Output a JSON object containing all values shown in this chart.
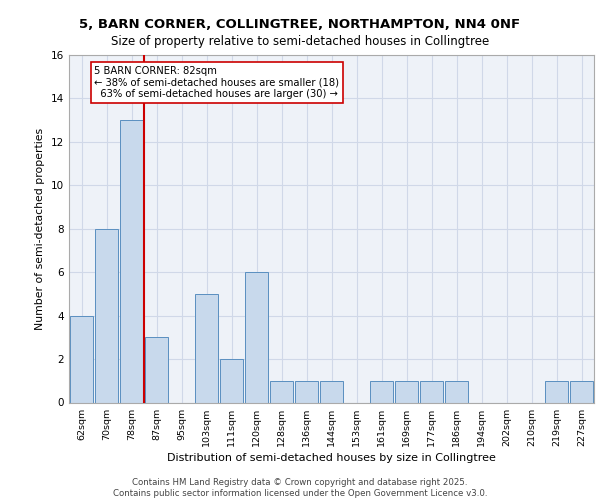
{
  "title1": "5, BARN CORNER, COLLINGTREE, NORTHAMPTON, NN4 0NF",
  "title2": "Size of property relative to semi-detached houses in Collingtree",
  "xlabel": "Distribution of semi-detached houses by size in Collingtree",
  "ylabel": "Number of semi-detached properties",
  "categories": [
    "62sqm",
    "70sqm",
    "78sqm",
    "87sqm",
    "95sqm",
    "103sqm",
    "111sqm",
    "120sqm",
    "128sqm",
    "136sqm",
    "144sqm",
    "153sqm",
    "161sqm",
    "169sqm",
    "177sqm",
    "186sqm",
    "194sqm",
    "202sqm",
    "210sqm",
    "219sqm",
    "227sqm"
  ],
  "values": [
    4,
    8,
    13,
    3,
    0,
    5,
    2,
    6,
    1,
    1,
    1,
    0,
    1,
    1,
    1,
    1,
    0,
    0,
    0,
    1,
    1
  ],
  "bar_color": "#c8d9ec",
  "bar_edge_color": "#5a8fc0",
  "property_line_x": 2,
  "property_sqm": 82,
  "property_name": "5 BARN CORNER",
  "pct_smaller": 38,
  "n_smaller": 18,
  "pct_larger": 63,
  "n_larger": 30,
  "vline_color": "#cc0000",
  "ylim": [
    0,
    16
  ],
  "yticks": [
    0,
    2,
    4,
    6,
    8,
    10,
    12,
    14,
    16
  ],
  "grid_color": "#d0d8e8",
  "bg_color": "#eef2f8",
  "footer1": "Contains HM Land Registry data © Crown copyright and database right 2025.",
  "footer2": "Contains public sector information licensed under the Open Government Licence v3.0."
}
